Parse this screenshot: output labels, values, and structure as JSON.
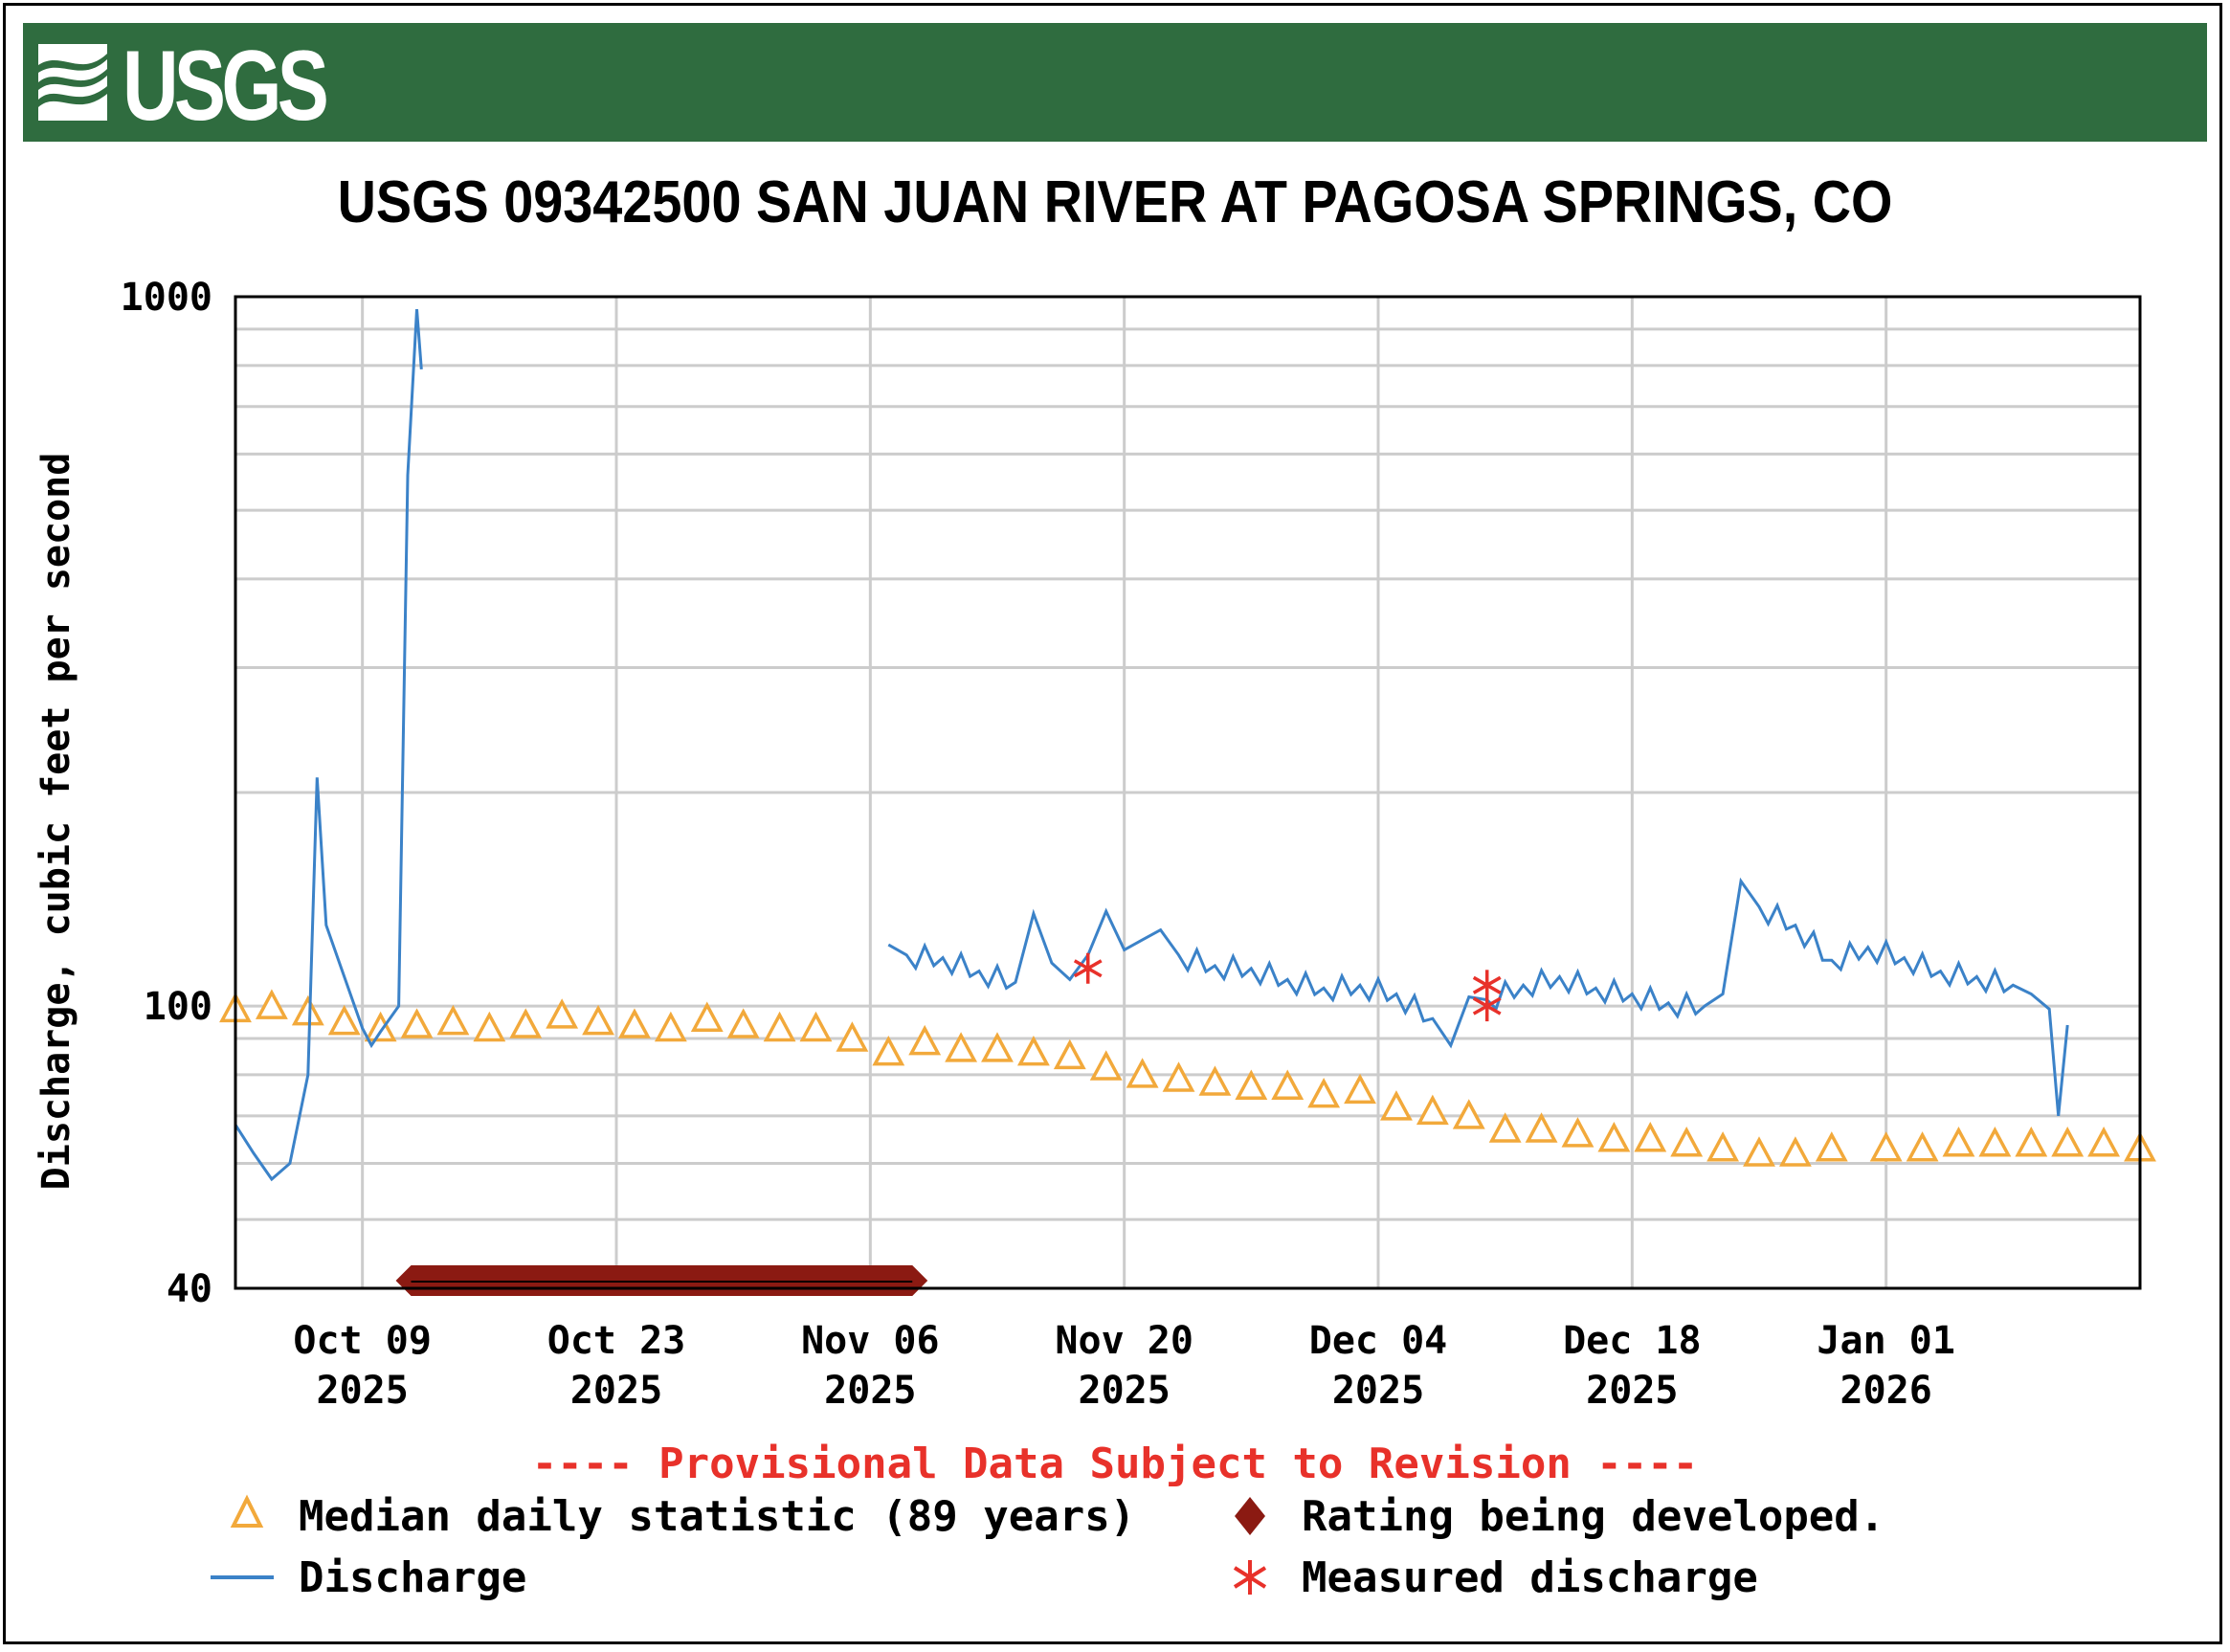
{
  "header": {
    "logo_text": "USGS"
  },
  "colors": {
    "header_bg": "#2f6c3f",
    "discharge": "#3b82c8",
    "median": "#f2a93b",
    "rating_bar": "#8b1a12",
    "measured": "#e8312a",
    "grid": "#cccccc"
  },
  "chart_data": {
    "type": "line",
    "title": "USGS 09342500 SAN JUAN RIVER AT PAGOSA SPRINGS, CO",
    "ylabel": "Discharge, cubic feet per second",
    "xlabel": "",
    "y_scale": "log",
    "ylim": [
      40,
      1000
    ],
    "xlim": [
      "2025-10-02",
      "2026-01-15"
    ],
    "y_ticks": [
      {
        "value": 1000,
        "label": "1000"
      },
      {
        "value": 100,
        "label": "100"
      },
      {
        "value": 40,
        "label": "40"
      }
    ],
    "x_ticks": [
      {
        "date": "2025-10-09",
        "label_top": "Oct 09",
        "label_bottom": "2025"
      },
      {
        "date": "2025-10-23",
        "label_top": "Oct 23",
        "label_bottom": "2025"
      },
      {
        "date": "2025-11-06",
        "label_top": "Nov 06",
        "label_bottom": "2025"
      },
      {
        "date": "2025-11-20",
        "label_top": "Nov 20",
        "label_bottom": "2025"
      },
      {
        "date": "2025-12-04",
        "label_top": "Dec 04",
        "label_bottom": "2025"
      },
      {
        "date": "2025-12-18",
        "label_top": "Dec 18",
        "label_bottom": "2025"
      },
      {
        "date": "2026-01-01",
        "label_top": "Jan 01",
        "label_bottom": "2026"
      }
    ],
    "grid": true,
    "series": [
      {
        "name": "Discharge",
        "style": "line",
        "points": [
          [
            "2025-10-02",
            68
          ],
          [
            "2025-10-03",
            62
          ],
          [
            "2025-10-04",
            57
          ],
          [
            "2025-10-05",
            60
          ],
          [
            "2025-10-06",
            80
          ],
          [
            "2025-10-06T12",
            210
          ],
          [
            "2025-10-07",
            130
          ],
          [
            "2025-10-08",
            110
          ],
          [
            "2025-10-09",
            93
          ],
          [
            "2025-10-09T12",
            88
          ],
          [
            "2025-10-10",
            92
          ],
          [
            "2025-10-11",
            100
          ],
          [
            "2025-10-11T12",
            560
          ],
          [
            "2025-10-12",
            960
          ],
          [
            "2025-10-12T06",
            790
          ],
          [
            "2025-11-07",
            122
          ],
          [
            "2025-11-08",
            118
          ],
          [
            "2025-11-10",
            117
          ],
          [
            "2025-11-12",
            112
          ],
          [
            "2025-11-14",
            108
          ],
          [
            "2025-11-15",
            135
          ],
          [
            "2025-11-16",
            115
          ],
          [
            "2025-11-17",
            109
          ],
          [
            "2025-11-18",
            118
          ],
          [
            "2025-11-19",
            136
          ],
          [
            "2025-11-20",
            120
          ],
          [
            "2025-11-21",
            124
          ],
          [
            "2025-11-22",
            128
          ],
          [
            "2025-11-23",
            118
          ],
          [
            "2025-11-25",
            114
          ],
          [
            "2025-11-27",
            113
          ],
          [
            "2025-11-29",
            109
          ],
          [
            "2025-12-01",
            106
          ],
          [
            "2025-12-03",
            107
          ],
          [
            "2025-12-05",
            104
          ],
          [
            "2025-12-07",
            96
          ],
          [
            "2025-12-08",
            88
          ],
          [
            "2025-12-09",
            103
          ],
          [
            "2025-12-10",
            102
          ],
          [
            "2025-12-12",
            107
          ],
          [
            "2025-12-14",
            110
          ],
          [
            "2025-12-16",
            106
          ],
          [
            "2025-12-18",
            104
          ],
          [
            "2025-12-20",
            101
          ],
          [
            "2025-12-22",
            100
          ],
          [
            "2025-12-23",
            104
          ],
          [
            "2025-12-24",
            150
          ],
          [
            "2025-12-25",
            138
          ],
          [
            "2025-12-27",
            130
          ],
          [
            "2025-12-29",
            116
          ],
          [
            "2025-12-31",
            121
          ],
          [
            "2026-01-02",
            117
          ],
          [
            "2026-01-04",
            112
          ],
          [
            "2026-01-06",
            110
          ],
          [
            "2026-01-08",
            107
          ],
          [
            "2026-01-09",
            104
          ],
          [
            "2026-01-10",
            99
          ],
          [
            "2026-01-10T12",
            70
          ],
          [
            "2026-01-11",
            94
          ]
        ]
      },
      {
        "name": "Median daily statistic (89 years)",
        "style": "triangle",
        "points": [
          [
            "2025-10-02",
            99
          ],
          [
            "2025-10-04",
            100
          ],
          [
            "2025-10-06",
            98
          ],
          [
            "2025-10-08",
            95
          ],
          [
            "2025-10-10",
            93
          ],
          [
            "2025-10-12",
            94
          ],
          [
            "2025-10-14",
            95
          ],
          [
            "2025-10-16",
            93
          ],
          [
            "2025-10-18",
            94
          ],
          [
            "2025-10-20",
            97
          ],
          [
            "2025-10-22",
            95
          ],
          [
            "2025-10-24",
            94
          ],
          [
            "2025-10-26",
            93
          ],
          [
            "2025-10-28",
            96
          ],
          [
            "2025-10-30",
            94
          ],
          [
            "2025-11-01",
            93
          ],
          [
            "2025-11-03",
            93
          ],
          [
            "2025-11-05",
            90
          ],
          [
            "2025-11-07",
            86
          ],
          [
            "2025-11-09",
            89
          ],
          [
            "2025-11-11",
            87
          ],
          [
            "2025-11-13",
            87
          ],
          [
            "2025-11-15",
            86
          ],
          [
            "2025-11-17",
            85
          ],
          [
            "2025-11-19",
            82
          ],
          [
            "2025-11-21",
            80
          ],
          [
            "2025-11-23",
            79
          ],
          [
            "2025-11-25",
            78
          ],
          [
            "2025-11-27",
            77
          ],
          [
            "2025-11-29",
            77
          ],
          [
            "2025-12-01",
            75
          ],
          [
            "2025-12-03",
            76
          ],
          [
            "2025-12-05",
            72
          ],
          [
            "2025-12-07",
            71
          ],
          [
            "2025-12-09",
            70
          ],
          [
            "2025-12-11",
            67
          ],
          [
            "2025-12-13",
            67
          ],
          [
            "2025-12-15",
            66
          ],
          [
            "2025-12-17",
            65
          ],
          [
            "2025-12-19",
            65
          ],
          [
            "2025-12-21",
            64
          ],
          [
            "2025-12-23",
            63
          ],
          [
            "2025-12-25",
            62
          ],
          [
            "2025-12-27",
            62
          ],
          [
            "2025-12-29",
            63
          ],
          [
            "2026-01-01",
            63
          ],
          [
            "2026-01-03",
            63
          ],
          [
            "2026-01-05",
            64
          ],
          [
            "2026-01-07",
            64
          ],
          [
            "2026-01-09",
            64
          ],
          [
            "2026-01-11",
            64
          ],
          [
            "2026-01-13",
            64
          ],
          [
            "2026-01-15",
            63
          ]
        ]
      },
      {
        "name": "Measured discharge",
        "style": "asterisk",
        "points": [
          [
            "2025-11-18",
            113
          ],
          [
            "2025-12-10",
            107
          ],
          [
            "2025-12-10",
            100
          ]
        ]
      },
      {
        "name": "Rating being developed.",
        "style": "bar",
        "x_range": [
          "2025-10-12",
          "2025-11-08"
        ]
      }
    ]
  },
  "footer": {
    "provisional_note": "---- Provisional Data Subject to Revision ----"
  },
  "legend": {
    "median_label": "Median daily statistic (89 years)",
    "rating_label": "Rating being developed.",
    "discharge_label": "Discharge",
    "measured_label": "Measured discharge"
  }
}
